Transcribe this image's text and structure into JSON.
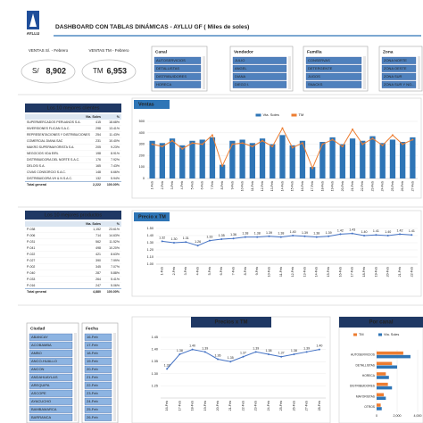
{
  "header": {
    "logo": "AYLLU",
    "title": "DASHBOARD CON TABLAS DINÁMICAS  - AYLLU GF   ( Miles de soles)"
  },
  "kpis": [
    {
      "label": "VENTAS S/. - Febrero",
      "prefix": "S/",
      "value": "8,902"
    },
    {
      "label": "VENTAS TM - Febrero",
      "prefix": "TM",
      "value": "6,953"
    }
  ],
  "slicers": [
    {
      "title": "Canal",
      "items": [
        "AUTOSERVICIOS",
        "DETALLISTAS",
        "DISTRIBUIDORES",
        "HORECA"
      ]
    },
    {
      "title": "Vendedor",
      "items": [
        "JULIO",
        "ANGEL",
        "DIANA",
        "DIEGO I."
      ]
    },
    {
      "title": "Familia",
      "items": [
        "CONSERVAS",
        "DETERGENTE",
        "JUGOS",
        "SNACKS"
      ]
    },
    {
      "title": "Zona",
      "items": [
        "ZONA NORTE",
        "ZONA OESTE",
        "ZONA SUR",
        "ZONA SUR Y NO..."
      ]
    },
    {
      "title": "Ciudad",
      "items": [
        "ABANCAY",
        "ACOBAMBA",
        "AMBO",
        "ANCO-HUALLO",
        "ANCON",
        "ANDAHUAYLAS",
        "AREQUIPA",
        "ASCOPE",
        "AYACUCHO",
        "BAMBAMARCA",
        "BARRANCA"
      ]
    },
    {
      "title": "Fecha",
      "items": [
        "16-Feb",
        "17-Feb",
        "18-Feb",
        "19-Feb",
        "20-Feb",
        "21-Feb",
        "22-Feb",
        "23-Feb",
        "24-Feb",
        "25-Feb",
        "26-Feb"
      ]
    }
  ],
  "tables": [
    {
      "title": "Los 10 mejores clientes",
      "columns": [
        "",
        "Vta. Soles",
        "%"
      ],
      "rows": [
        [
          "SUPERMERCADOS PERUANOS S.A.",
          "415",
          "18.68%"
        ],
        [
          "INVERSIONES FLICAN S.A.C.",
          "298",
          "13.41%"
        ],
        [
          "REPRESENTACIONES Y DISTRIBUCIONES",
          "254",
          "11.43%"
        ],
        [
          "COMERCIAL DIANA SAC",
          "231",
          "10.40%"
        ],
        [
          "MAKRO SUPERMAYORISTA S.A.",
          "205",
          "9.23%"
        ],
        [
          "NEGOCIOS VDA EIRL",
          "198",
          "8.91%"
        ],
        [
          "DISTRIBUIDORA DEL NORTE S.A.C.",
          "176",
          "7.92%"
        ],
        [
          "DELOSI S.A.",
          "165",
          "7.43%"
        ],
        [
          "CIVAS CONSORCIO S.A.C.",
          "148",
          "6.66%"
        ],
        [
          "DISTRIBUIDORA VH & N S.A.C.",
          "132",
          "5.94%"
        ]
      ],
      "total": [
        "Total general",
        "2,222",
        "100.00%"
      ]
    },
    {
      "title": "Los 10 mejores productos",
      "columns": [
        "",
        "Vta. Soles",
        "%"
      ],
      "rows": [
        [
          "P-038",
          "1,152",
          "23.61%"
        ],
        [
          "P-006",
          "714",
          "14.63%"
        ],
        [
          "P-031",
          "562",
          "11.52%"
        ],
        [
          "P-041",
          "498",
          "10.20%"
        ],
        [
          "P-022",
          "421",
          "8.63%"
        ],
        [
          "P-027",
          "390",
          "7.99%"
        ],
        [
          "P-002",
          "345",
          "7.07%"
        ],
        [
          "P-040",
          "287",
          "5.88%"
        ],
        [
          "P-033",
          "264",
          "5.41%"
        ],
        [
          "P-016",
          "247",
          "5.06%"
        ]
      ],
      "total": [
        "Total general",
        "4,880",
        "100.00%"
      ]
    }
  ],
  "chart_data": [
    {
      "type": "bar",
      "title": "Ventas",
      "categories": [
        "1-Feb",
        "2-Feb",
        "3-Feb",
        "4-Feb",
        "5-Feb",
        "6-Feb",
        "7-Feb",
        "8-Feb",
        "9-Feb",
        "10-Feb",
        "11-Feb",
        "12-Feb",
        "13-Feb",
        "14-Feb",
        "15-Feb",
        "16-Feb",
        "17-Feb",
        "18-Feb",
        "19-Feb",
        "20-Feb",
        "21-Feb",
        "22-Feb",
        "23-Feb",
        "24-Feb",
        "25-Feb",
        "26-Feb",
        "27-Feb"
      ],
      "series": [
        {
          "name": "Vta. Soles",
          "type": "bar",
          "color": "#2e75b6",
          "values": [
            330,
            310,
            350,
            290,
            330,
            340,
            360,
            120,
            330,
            340,
            310,
            350,
            300,
            380,
            290,
            330,
            100,
            320,
            360,
            300,
            350,
            330,
            370,
            310,
            340,
            320,
            360
          ]
        },
        {
          "name": "TM",
          "type": "line",
          "color": "#ed7d31",
          "values": [
            300,
            280,
            330,
            260,
            310,
            300,
            380,
            110,
            300,
            310,
            280,
            330,
            280,
            440,
            270,
            310,
            90,
            300,
            340,
            280,
            430,
            300,
            350,
            290,
            380,
            300,
            340
          ]
        }
      ],
      "ylim": [
        0,
        500
      ],
      "yticks": [
        0,
        100,
        200,
        300,
        400,
        500
      ],
      "grid": true
    },
    {
      "type": "line",
      "title": "Precio x TM",
      "color": "#4472c4",
      "categories": [
        "1-Feb",
        "2-Feb",
        "3-Feb",
        "4-Feb",
        "5-Feb",
        "6-Feb",
        "7-Feb",
        "8-Feb",
        "9-Feb",
        "10-Feb",
        "11-Feb",
        "12-Feb",
        "13-Feb",
        "14-Feb",
        "15-Feb",
        "16-Feb",
        "17-Feb",
        "18-Feb",
        "19-Feb",
        "20-Feb",
        "21-Feb",
        "22-Feb"
      ],
      "values": [
        1.32,
        1.3,
        1.31,
        1.26,
        1.33,
        1.35,
        1.36,
        1.38,
        1.38,
        1.39,
        1.38,
        1.4,
        1.39,
        1.38,
        1.39,
        1.42,
        1.43,
        1.4,
        1.41,
        1.4,
        1.42,
        1.41
      ],
      "value_labels": [
        "1.32",
        "1.30",
        "1.31",
        "1.26",
        "1.33",
        "1.35",
        "1.36",
        "1.38",
        "1.38",
        "1.39",
        "1.38",
        "1.40",
        "1.39",
        "1.38",
        "1.39",
        "1.42",
        "1.43",
        "1.40",
        "1.41",
        "1.40",
        "1.42",
        "1.41"
      ],
      "ylim": [
        1,
        1.5
      ],
      "yticks": [
        {
          "value": 1,
          "label": "1.00"
        },
        {
          "value": 1.1,
          "label": "1.10"
        },
        {
          "value": 1.2,
          "label": "1.20"
        },
        {
          "value": 1.3,
          "label": "1.30"
        },
        {
          "value": 1.4,
          "label": "1.40"
        },
        {
          "value": 1.5,
          "label": "1.50"
        }
      ],
      "grid": true
    },
    {
      "type": "line",
      "title": "Precios x TM",
      "color": "#4472c4",
      "categories": [
        "16-Feb",
        "17-Feb",
        "18-Feb",
        "19-Feb",
        "20-Feb",
        "21-Feb",
        "22-Feb",
        "23-Feb",
        "24-Feb",
        "25-Feb",
        "26-Feb",
        "27-Feb",
        "28-Feb"
      ],
      "values": [
        1.32,
        1.38,
        1.4,
        1.39,
        1.36,
        1.35,
        1.37,
        1.39,
        1.38,
        1.37,
        1.38,
        1.39,
        1.4
      ],
      "value_labels": [
        "1.32",
        "1.38",
        "1.40",
        "1.39",
        "1.36",
        "1.35",
        "1.37",
        "1.39",
        "1.38",
        "1.37",
        "1.38",
        "1.39",
        "1.40"
      ],
      "ylim": [
        1.2,
        1.45
      ],
      "yticks": [
        1.25,
        {
          "value": 1.3,
          "label": "1.30"
        },
        1.35,
        {
          "value": 1.4,
          "label": "1.40"
        },
        1.45
      ],
      "grid": true
    },
    {
      "type": "hbar",
      "title": "Por canal",
      "categories": [
        "AUTOSERVICIOS",
        "DETALLISTAS",
        "HORECA",
        "DISTRIBUIDORES",
        "MAYORISTAS",
        "OTROS"
      ],
      "series": [
        {
          "name": "TM",
          "color": "#ed7d31",
          "values": [
            2600,
            1500,
            900,
            1100,
            700,
            400
          ]
        },
        {
          "name": "Vta. Soles",
          "color": "#2e75b6",
          "values": [
            3300,
            2000,
            1200,
            1500,
            900,
            500
          ]
        }
      ],
      "xlim": [
        0,
        4000
      ],
      "xticks": [
        0,
        {
          "value": 2000,
          "label": "2,000"
        },
        {
          "value": 4000,
          "label": "4,000"
        }
      ],
      "grid": true
    }
  ]
}
